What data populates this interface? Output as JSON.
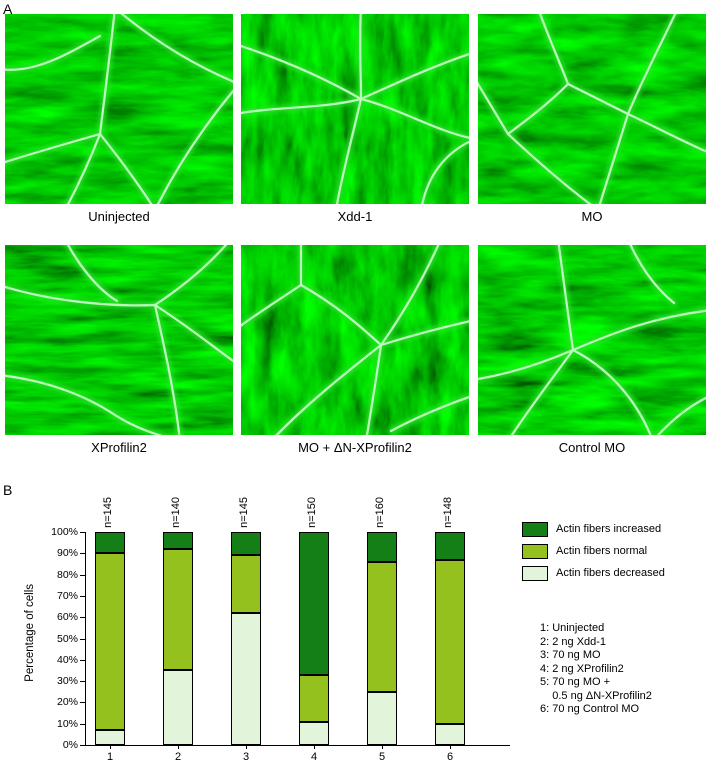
{
  "panelA": {
    "label": "A",
    "images": [
      {
        "caption": "Uninjected"
      },
      {
        "caption": "Xdd-1"
      },
      {
        "caption": "MO"
      },
      {
        "caption": "XProfilin2"
      },
      {
        "caption": "MO + ΔN-XProfilin2"
      },
      {
        "caption": "Control MO"
      }
    ]
  },
  "panelB": {
    "label": "B",
    "key_lines": [
      "1: Uninjected",
      "2: 2 ng Xdd-1",
      "3: 70 ng MO",
      "4: 2 ng XProfilin2",
      "5: 70 ng MO +",
      "    0.5 ng ΔN-XProfilin2",
      "6: 70 ng Control MO"
    ]
  },
  "chart_data": {
    "type": "bar",
    "subtype": "stacked-percentage",
    "categories": [
      "1",
      "2",
      "3",
      "4",
      "5",
      "6"
    ],
    "n_labels": [
      "n=145",
      "n=140",
      "n=145",
      "n=150",
      "n=160",
      "n=148"
    ],
    "series": [
      {
        "name": "Actin fibers decreased",
        "color": "#e2f4da",
        "values": [
          7,
          35,
          62,
          11,
          25,
          10
        ]
      },
      {
        "name": "Actin fibers normal",
        "color": "#95c11f",
        "values": [
          83,
          57,
          27,
          22,
          61,
          77
        ]
      },
      {
        "name": "Actin fibers increased",
        "color": "#157f17",
        "values": [
          10,
          8,
          11,
          67,
          14,
          13
        ]
      }
    ],
    "title": "",
    "xlabel": "",
    "ylabel": "Percentage of cells",
    "ylim": [
      0,
      100
    ],
    "ytick_step": 10,
    "ytick_suffix": "%",
    "grid": false,
    "legend_position": "right",
    "legend_order": "top-series-first"
  }
}
